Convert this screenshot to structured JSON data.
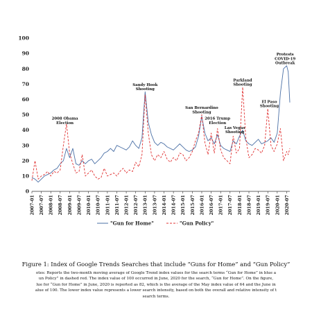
{
  "chart_data": {
    "type": "line",
    "ylim": [
      0,
      100
    ],
    "y_ticks": [
      0,
      10,
      20,
      30,
      40,
      50,
      60,
      70,
      80,
      90,
      100
    ],
    "x_tick_labels": [
      "2007-01",
      "2007-07",
      "2008-01",
      "2008-07",
      "2009-01",
      "2009-07",
      "2010-01",
      "2010-07",
      "2011-01",
      "2011-07",
      "2012-01",
      "2012-07",
      "2013-01",
      "2013-07",
      "2014-01",
      "2014-07",
      "2015-01",
      "2015-07",
      "2016-01",
      "2016-07",
      "2017-01",
      "2017-07",
      "2018-01",
      "2018-07",
      "2019-01",
      "2019-07",
      "2020-01",
      "2020-07"
    ],
    "grid": false,
    "legend_position": "bottom",
    "series": [
      {
        "name": "\"Gun for Home\"",
        "color": "#4a6fa5",
        "dash": "solid",
        "points": [
          [
            "2007-01",
            9
          ],
          [
            "2007-03",
            8
          ],
          [
            "2007-05",
            6
          ],
          [
            "2007-07",
            8
          ],
          [
            "2007-09",
            10
          ],
          [
            "2007-11",
            11
          ],
          [
            "2008-01",
            12
          ],
          [
            "2008-03",
            14
          ],
          [
            "2008-05",
            15
          ],
          [
            "2008-07",
            18
          ],
          [
            "2008-09",
            20
          ],
          [
            "2008-11",
            28
          ],
          [
            "2009-01",
            22
          ],
          [
            "2009-03",
            28
          ],
          [
            "2009-05",
            18
          ],
          [
            "2009-07",
            17
          ],
          [
            "2009-09",
            20
          ],
          [
            "2009-11",
            18
          ],
          [
            "2010-01",
            20
          ],
          [
            "2010-03",
            21
          ],
          [
            "2010-05",
            18
          ],
          [
            "2010-07",
            20
          ],
          [
            "2010-09",
            22
          ],
          [
            "2010-11",
            25
          ],
          [
            "2011-01",
            26
          ],
          [
            "2011-03",
            28
          ],
          [
            "2011-05",
            26
          ],
          [
            "2011-07",
            30
          ],
          [
            "2011-09",
            29
          ],
          [
            "2011-11",
            28
          ],
          [
            "2012-01",
            27
          ],
          [
            "2012-03",
            29
          ],
          [
            "2012-05",
            33
          ],
          [
            "2012-07",
            30
          ],
          [
            "2012-09",
            28
          ],
          [
            "2012-11",
            35
          ],
          [
            "2013-01",
            65
          ],
          [
            "2013-03",
            45
          ],
          [
            "2013-05",
            37
          ],
          [
            "2013-07",
            32
          ],
          [
            "2013-09",
            30
          ],
          [
            "2013-11",
            32
          ],
          [
            "2014-01",
            31
          ],
          [
            "2014-03",
            29
          ],
          [
            "2014-05",
            28
          ],
          [
            "2014-07",
            27
          ],
          [
            "2014-09",
            29
          ],
          [
            "2014-11",
            31
          ],
          [
            "2015-01",
            29
          ],
          [
            "2015-03",
            27
          ],
          [
            "2015-05",
            26
          ],
          [
            "2015-07",
            27
          ],
          [
            "2015-09",
            29
          ],
          [
            "2015-11",
            36
          ],
          [
            "2016-01",
            49
          ],
          [
            "2016-03",
            38
          ],
          [
            "2016-05",
            33
          ],
          [
            "2016-07",
            35
          ],
          [
            "2016-09",
            31
          ],
          [
            "2016-11",
            37
          ],
          [
            "2017-01",
            30
          ],
          [
            "2017-03",
            28
          ],
          [
            "2017-05",
            27
          ],
          [
            "2017-07",
            26
          ],
          [
            "2017-09",
            33
          ],
          [
            "2017-11",
            31
          ],
          [
            "2018-01",
            36
          ],
          [
            "2018-03",
            40
          ],
          [
            "2018-05",
            33
          ],
          [
            "2018-07",
            31
          ],
          [
            "2018-09",
            30
          ],
          [
            "2018-11",
            32
          ],
          [
            "2019-01",
            34
          ],
          [
            "2019-03",
            31
          ],
          [
            "2019-05",
            32
          ],
          [
            "2019-07",
            33
          ],
          [
            "2019-09",
            35
          ],
          [
            "2019-11",
            32
          ],
          [
            "2020-01",
            38
          ],
          [
            "2020-03",
            64
          ],
          [
            "2020-05",
            80
          ],
          [
            "2020-07",
            82
          ],
          [
            "2020-08",
            78
          ],
          [
            "2020-09",
            58
          ]
        ]
      },
      {
        "name": "\"Gun Policy\"",
        "color": "#e03030",
        "dash": "dashed",
        "points": [
          [
            "2007-01",
            7
          ],
          [
            "2007-03",
            20
          ],
          [
            "2007-05",
            8
          ],
          [
            "2007-07",
            10
          ],
          [
            "2007-09",
            11
          ],
          [
            "2007-11",
            13
          ],
          [
            "2008-01",
            10
          ],
          [
            "2008-03",
            13
          ],
          [
            "2008-05",
            12
          ],
          [
            "2008-07",
            14
          ],
          [
            "2008-09",
            30
          ],
          [
            "2008-11",
            44
          ],
          [
            "2009-01",
            25
          ],
          [
            "2009-03",
            18
          ],
          [
            "2009-05",
            12
          ],
          [
            "2009-07",
            13
          ],
          [
            "2009-09",
            24
          ],
          [
            "2009-11",
            10
          ],
          [
            "2010-01",
            12
          ],
          [
            "2010-03",
            14
          ],
          [
            "2010-05",
            10
          ],
          [
            "2010-07",
            8
          ],
          [
            "2010-09",
            9
          ],
          [
            "2010-11",
            15
          ],
          [
            "2011-01",
            10
          ],
          [
            "2011-03",
            11
          ],
          [
            "2011-05",
            12
          ],
          [
            "2011-07",
            10
          ],
          [
            "2011-09",
            13
          ],
          [
            "2011-11",
            15
          ],
          [
            "2012-01",
            12
          ],
          [
            "2012-03",
            14
          ],
          [
            "2012-05",
            13
          ],
          [
            "2012-07",
            19
          ],
          [
            "2012-09",
            16
          ],
          [
            "2012-11",
            24
          ],
          [
            "2013-01",
            63
          ],
          [
            "2013-03",
            38
          ],
          [
            "2013-05",
            24
          ],
          [
            "2013-07",
            20
          ],
          [
            "2013-09",
            24
          ],
          [
            "2013-11",
            22
          ],
          [
            "2014-01",
            26
          ],
          [
            "2014-03",
            21
          ],
          [
            "2014-05",
            19
          ],
          [
            "2014-07",
            22
          ],
          [
            "2014-09",
            20
          ],
          [
            "2014-11",
            25
          ],
          [
            "2015-01",
            24
          ],
          [
            "2015-03",
            20
          ],
          [
            "2015-05",
            22
          ],
          [
            "2015-07",
            26
          ],
          [
            "2015-09",
            33
          ],
          [
            "2015-11",
            38
          ],
          [
            "2016-01",
            50
          ],
          [
            "2016-03",
            32
          ],
          [
            "2016-05",
            24
          ],
          [
            "2016-07",
            38
          ],
          [
            "2016-09",
            25
          ],
          [
            "2016-11",
            41
          ],
          [
            "2017-01",
            27
          ],
          [
            "2017-03",
            22
          ],
          [
            "2017-05",
            20
          ],
          [
            "2017-07",
            18
          ],
          [
            "2017-09",
            36
          ],
          [
            "2017-11",
            25
          ],
          [
            "2018-01",
            28
          ],
          [
            "2018-03",
            68
          ],
          [
            "2018-05",
            35
          ],
          [
            "2018-07",
            22
          ],
          [
            "2018-09",
            24
          ],
          [
            "2018-11",
            28
          ],
          [
            "2019-01",
            27
          ],
          [
            "2019-03",
            25
          ],
          [
            "2019-05",
            30
          ],
          [
            "2019-07",
            54
          ],
          [
            "2019-09",
            30
          ],
          [
            "2019-11",
            26
          ],
          [
            "2020-01",
            31
          ],
          [
            "2020-03",
            41
          ],
          [
            "2020-05",
            20
          ],
          [
            "2020-07",
            26
          ],
          [
            "2020-08",
            24
          ],
          [
            "2020-09",
            28
          ]
        ]
      }
    ],
    "annotations": [
      {
        "lines": [
          "2008 Obama",
          "Election"
        ],
        "x": "2008-10",
        "y": 44
      },
      {
        "lines": [
          "Sandy Hook",
          "Shooting"
        ],
        "x": "2013-01",
        "y": 66
      },
      {
        "lines": [
          "San Bernardino",
          "Shooting"
        ],
        "x": "2016-01",
        "y": 51
      },
      {
        "lines": [
          "2016 Trump",
          "Election"
        ],
        "x": "2016-11",
        "y": 44
      },
      {
        "lines": [
          "Las Vegas",
          "Shooting"
        ],
        "x": "2017-10",
        "y": 38
      },
      {
        "lines": [
          "Parkland",
          "Shooting"
        ],
        "x": "2018-03",
        "y": 69
      },
      {
        "lines": [
          "El Paso",
          "Shooting"
        ],
        "x": "2019-08",
        "y": 55
      },
      {
        "lines": [
          "Protests",
          "COVID-19",
          "Outbreak"
        ],
        "x": "2020-06",
        "y": 83
      }
    ]
  },
  "caption": {
    "title": "Figure 1: Index of Google Trends Searches that include “Guns for Home” and “Gun Policy”",
    "notes": [
      "otes: Reports the two-month moving average of Google Trend index values for the search terms “Gun for Home” in blue a",
      "un Policy” in dashed red. The index value of 100 occurred in June, 2020 for the search, “Gun for Home”. On the figure,",
      "lue for “Gun for Home” in June, 2020 is reported as 82, which is the average of the May index value of 64 and the June in",
      "alue of 100. The lower index value represents a lower search intensity, based on both the overall and relative intensity of t",
      "search terms."
    ]
  }
}
